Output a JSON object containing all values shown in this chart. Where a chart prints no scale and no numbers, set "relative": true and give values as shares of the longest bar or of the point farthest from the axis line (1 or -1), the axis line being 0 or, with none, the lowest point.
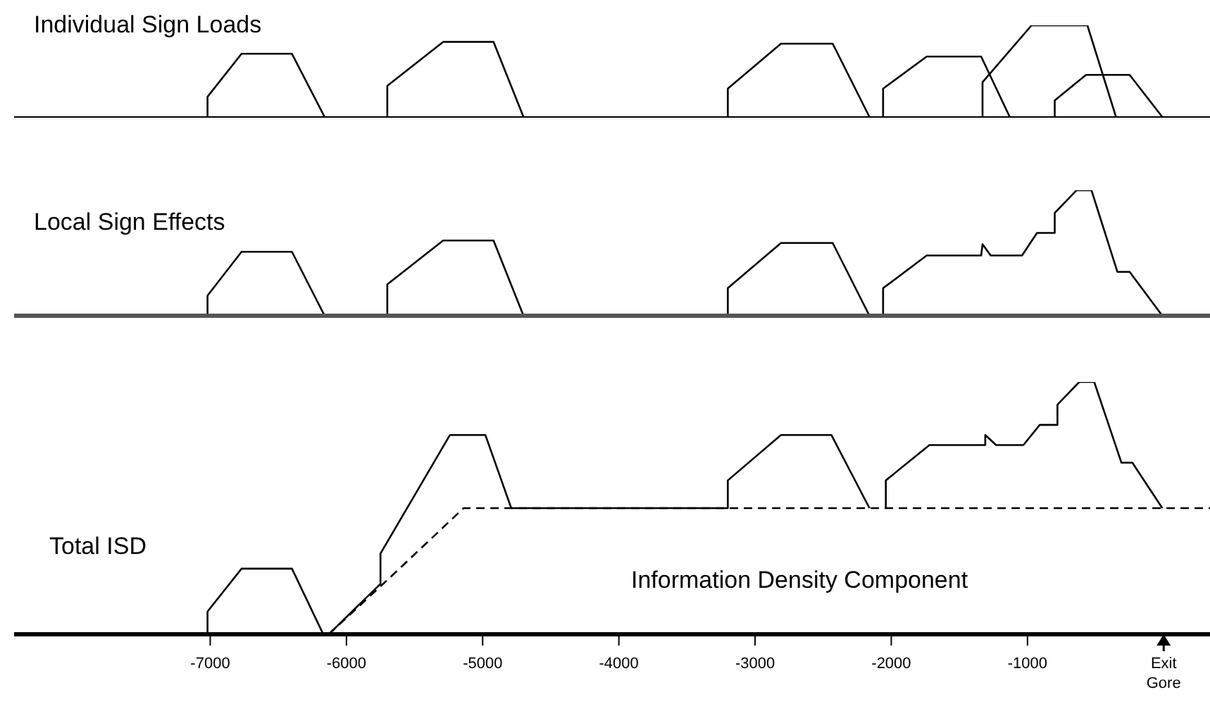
{
  "chart_data": [
    {
      "type": "line",
      "title": "Individual Sign Loads",
      "relative": true,
      "xlim": [
        -8440,
        340
      ],
      "tick_labels": false,
      "marker": "none",
      "line_style": "solid",
      "series": [
        {
          "color": "#000000",
          "x": [
            -7020,
            -7020,
            -6770,
            -6400,
            -6160
          ],
          "values": [
            0,
            0.22,
            0.69,
            0.69,
            0
          ]
        },
        {
          "color": "#000000",
          "x": [
            -5700,
            -5700,
            -5290,
            -4920,
            -4700
          ],
          "values": [
            0,
            0.34,
            0.82,
            0.82,
            0
          ]
        },
        {
          "color": "#000000",
          "x": [
            -3200,
            -3200,
            -2810,
            -2430,
            -2160
          ],
          "values": [
            0,
            0.31,
            0.8,
            0.8,
            0
          ]
        },
        {
          "color": "#000000",
          "x": [
            -2060,
            -2060,
            -1740,
            -1340,
            -1130
          ],
          "values": [
            0,
            0.31,
            0.66,
            0.66,
            0
          ]
        },
        {
          "color": "#000000",
          "x": [
            -1330,
            -1330,
            -970,
            -560,
            -350
          ],
          "values": [
            0,
            0.38,
            1,
            1,
            0
          ]
        },
        {
          "color": "#000000",
          "x": [
            -800,
            -800,
            -570,
            -250,
            -10
          ],
          "values": [
            0,
            0.18,
            0.46,
            0.46,
            0
          ]
        }
      ]
    },
    {
      "type": "line",
      "title": "Local Sign Effects",
      "relative": true,
      "xlim": [
        -8440,
        340
      ],
      "tick_labels": false,
      "marker": "none",
      "line_style": "solid",
      "series": [
        {
          "color": "#000000",
          "x": [
            -7020,
            -7020,
            -6770,
            -6400,
            -6160
          ],
          "values": [
            0,
            0.16,
            0.51,
            0.51,
            0
          ]
        },
        {
          "color": "#000000",
          "x": [
            -5700,
            -5700,
            -5290,
            -4920,
            -4700
          ],
          "values": [
            0,
            0.25,
            0.6,
            0.6,
            0
          ]
        },
        {
          "color": "#000000",
          "x": [
            -3200,
            -3200,
            -2810,
            -2430,
            -2160
          ],
          "values": [
            0,
            0.22,
            0.58,
            0.58,
            0
          ]
        },
        {
          "color": "#000000",
          "x": [
            -2060,
            -2060,
            -1740,
            -1340,
            -1330,
            -1270,
            -1040,
            -930,
            -800,
            -800,
            -640,
            -530,
            -340,
            -250,
            -10
          ],
          "values": [
            0,
            0.22,
            0.48,
            0.48,
            0.57,
            0.48,
            0.48,
            0.66,
            0.66,
            0.82,
            1,
            1,
            0.35,
            0.35,
            0
          ]
        }
      ]
    },
    {
      "type": "line",
      "title": "Total ISD",
      "relative": true,
      "xlim": [
        -8440,
        340
      ],
      "xticks": [
        -7000,
        -6000,
        -5000,
        -4000,
        -3000,
        -2000,
        -1000,
        {
          "value": 0,
          "label": "Exit Gore"
        }
      ],
      "marker": "none",
      "line_style": "solid",
      "series": [
        {
          "color": "#000000",
          "x": [
            -7020,
            -7020,
            -6770,
            -6400,
            -6170,
            -6130,
            -5750,
            -5750,
            -5240,
            -4980,
            -4790,
            -3200,
            -3200,
            -2810,
            -2440,
            -2160
          ],
          "values": [
            0,
            0.09,
            0.26,
            0.26,
            0,
            0,
            0.2,
            0.32,
            0.79,
            0.79,
            0.5,
            0.5,
            0.61,
            0.79,
            0.79,
            0.5
          ]
        },
        {
          "color": "#000000",
          "x": [
            -2040,
            -2040,
            -1720,
            -1310,
            -1310,
            -1230,
            -1030,
            -910,
            -780,
            -780,
            -620,
            -510,
            -310,
            -230,
            -10
          ],
          "values": [
            0.5,
            0.61,
            0.75,
            0.75,
            0.79,
            0.75,
            0.75,
            0.83,
            0.83,
            0.91,
            1,
            1,
            0.68,
            0.68,
            0.5
          ]
        },
        {
          "name": "Information Density Component",
          "color": "#000000",
          "line_style": "dashed",
          "x": [
            -6130,
            -5710,
            -5140,
            340
          ],
          "values": [
            0,
            0.21,
            0.5,
            0.5
          ]
        }
      ]
    }
  ]
}
